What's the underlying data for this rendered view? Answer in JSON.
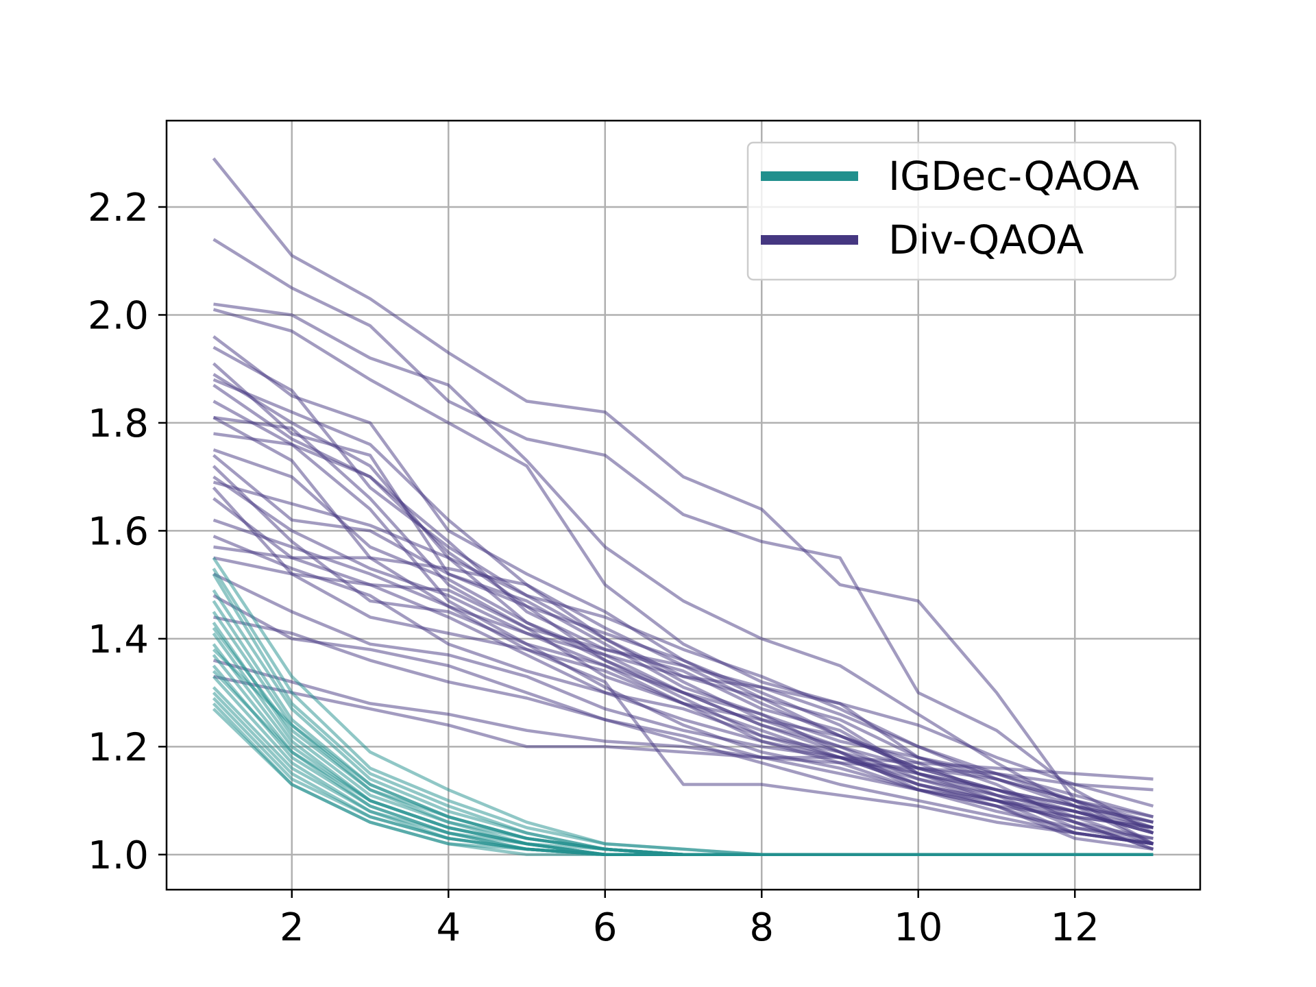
{
  "chart_data": {
    "type": "line",
    "title": "",
    "xlabel": "",
    "ylabel": "",
    "xlim": [
      0.4,
      13.6
    ],
    "ylim": [
      0.935,
      2.36
    ],
    "xticks": [
      2,
      4,
      6,
      8,
      10,
      12
    ],
    "yticks": [
      1.0,
      1.2,
      1.4,
      1.6,
      1.8,
      2.0,
      2.2
    ],
    "grid": true,
    "legend_position": "top-right",
    "legend": [
      {
        "label": "IGDec-QAOA",
        "color": "#21908d"
      },
      {
        "label": "Div-QAOA",
        "color": "#453781"
      }
    ],
    "x": [
      1,
      2,
      3,
      4,
      5,
      6,
      7,
      8,
      9,
      10,
      11,
      12,
      13
    ],
    "series": [
      {
        "name": "Div-QAOA",
        "color": "#453781",
        "values": [
          2.29,
          2.11,
          2.03,
          1.93,
          1.84,
          1.82,
          1.7,
          1.64,
          1.5,
          1.47,
          1.3,
          1.1,
          1.02
        ]
      },
      {
        "name": "Div-QAOA",
        "color": "#453781",
        "values": [
          2.14,
          2.05,
          1.98,
          1.84,
          1.77,
          1.74,
          1.63,
          1.58,
          1.55,
          1.3,
          1.23,
          1.12,
          1.04
        ]
      },
      {
        "name": "Div-QAOA",
        "color": "#453781",
        "values": [
          2.02,
          2.0,
          1.92,
          1.87,
          1.73,
          1.57,
          1.47,
          1.4,
          1.35,
          1.26,
          1.17,
          1.09,
          1.02
        ]
      },
      {
        "name": "Div-QAOA",
        "color": "#453781",
        "values": [
          2.01,
          1.97,
          1.88,
          1.8,
          1.72,
          1.5,
          1.39,
          1.32,
          1.28,
          1.18,
          1.13,
          1.06,
          1.01
        ]
      },
      {
        "name": "Div-QAOA",
        "color": "#453781",
        "values": [
          1.96,
          1.85,
          1.8,
          1.6,
          1.52,
          1.45,
          1.36,
          1.3,
          1.24,
          1.15,
          1.1,
          1.04,
          1.02
        ]
      },
      {
        "name": "Div-QAOA",
        "color": "#453781",
        "values": [
          1.94,
          1.86,
          1.68,
          1.57,
          1.48,
          1.4,
          1.33,
          1.29,
          1.22,
          1.17,
          1.11,
          1.05,
          1.03
        ]
      },
      {
        "name": "Div-QAOA",
        "color": "#453781",
        "values": [
          1.91,
          1.78,
          1.74,
          1.52,
          1.47,
          1.39,
          1.31,
          1.26,
          1.19,
          1.12,
          1.09,
          1.04,
          1.02
        ]
      },
      {
        "name": "Div-QAOA",
        "color": "#453781",
        "values": [
          1.89,
          1.8,
          1.72,
          1.55,
          1.43,
          1.37,
          1.3,
          1.24,
          1.2,
          1.14,
          1.1,
          1.06,
          1.01
        ]
      },
      {
        "name": "Div-QAOA",
        "color": "#453781",
        "values": [
          1.88,
          1.82,
          1.76,
          1.62,
          1.5,
          1.42,
          1.35,
          1.28,
          1.22,
          1.16,
          1.12,
          1.07,
          1.02
        ]
      },
      {
        "name": "Div-QAOA",
        "color": "#453781",
        "values": [
          1.87,
          1.77,
          1.7,
          1.56,
          1.46,
          1.36,
          1.29,
          1.22,
          1.18,
          1.13,
          1.09,
          1.03,
          1.01
        ]
      },
      {
        "name": "Div-QAOA",
        "color": "#453781",
        "values": [
          1.84,
          1.76,
          1.7,
          1.58,
          1.45,
          1.38,
          1.34,
          1.27,
          1.23,
          1.15,
          1.12,
          1.08,
          1.04
        ]
      },
      {
        "name": "Div-QAOA",
        "color": "#453781",
        "values": [
          1.81,
          1.79,
          1.66,
          1.5,
          1.42,
          1.33,
          1.28,
          1.21,
          1.17,
          1.12,
          1.08,
          1.05,
          1.02
        ]
      },
      {
        "name": "Div-QAOA",
        "color": "#453781",
        "values": [
          1.81,
          1.73,
          1.55,
          1.53,
          1.5,
          1.4,
          1.32,
          1.25,
          1.2,
          1.16,
          1.14,
          1.1,
          1.06
        ]
      },
      {
        "name": "Div-QAOA",
        "color": "#453781",
        "values": [
          1.78,
          1.76,
          1.64,
          1.47,
          1.39,
          1.35,
          1.3,
          1.26,
          1.21,
          1.18,
          1.15,
          1.11,
          1.07
        ]
      },
      {
        "name": "Div-QAOA",
        "color": "#453781",
        "values": [
          1.75,
          1.7,
          1.57,
          1.51,
          1.43,
          1.36,
          1.3,
          1.24,
          1.19,
          1.13,
          1.1,
          1.06,
          1.03
        ]
      },
      {
        "name": "Div-QAOA",
        "color": "#453781",
        "values": [
          1.74,
          1.62,
          1.6,
          1.52,
          1.46,
          1.41,
          1.36,
          1.29,
          1.25,
          1.18,
          1.14,
          1.09,
          1.05
        ]
      },
      {
        "name": "Div-QAOA",
        "color": "#453781",
        "values": [
          1.72,
          1.58,
          1.47,
          1.45,
          1.39,
          1.31,
          1.24,
          1.19,
          1.16,
          1.12,
          1.1,
          1.07,
          1.05
        ]
      },
      {
        "name": "Div-QAOA",
        "color": "#453781",
        "values": [
          1.7,
          1.6,
          1.53,
          1.48,
          1.41,
          1.35,
          1.28,
          1.23,
          1.18,
          1.13,
          1.1,
          1.08,
          1.04
        ]
      },
      {
        "name": "Div-QAOA",
        "color": "#453781",
        "values": [
          1.69,
          1.65,
          1.61,
          1.55,
          1.48,
          1.44,
          1.38,
          1.33,
          1.27,
          1.2,
          1.15,
          1.1,
          1.05
        ]
      },
      {
        "name": "Div-QAOA",
        "color": "#453781",
        "values": [
          1.68,
          1.52,
          1.44,
          1.41,
          1.38,
          1.34,
          1.28,
          1.25,
          1.22,
          1.16,
          1.12,
          1.09,
          1.06
        ]
      },
      {
        "name": "Div-QAOA",
        "color": "#453781",
        "values": [
          1.66,
          1.55,
          1.5,
          1.44,
          1.37,
          1.3,
          1.27,
          1.22,
          1.19,
          1.15,
          1.11,
          1.08,
          1.04
        ]
      },
      {
        "name": "Div-QAOA",
        "color": "#453781",
        "values": [
          1.59,
          1.53,
          1.48,
          1.39,
          1.34,
          1.3,
          1.25,
          1.21,
          1.18,
          1.14,
          1.11,
          1.08,
          1.05
        ]
      },
      {
        "name": "Div-QAOA",
        "color": "#453781",
        "values": [
          1.57,
          1.55,
          1.55,
          1.46,
          1.41,
          1.37,
          1.33,
          1.31,
          1.26,
          1.2,
          1.14,
          1.1,
          1.07
        ]
      },
      {
        "name": "Div-QAOA",
        "color": "#453781",
        "values": [
          1.55,
          1.52,
          1.5,
          1.49,
          1.42,
          1.38,
          1.35,
          1.31,
          1.28,
          1.24,
          1.18,
          1.13,
          1.09
        ]
      },
      {
        "name": "Div-QAOA",
        "color": "#453781",
        "values": [
          1.52,
          1.45,
          1.39,
          1.37,
          1.33,
          1.27,
          1.23,
          1.2,
          1.18,
          1.15,
          1.12,
          1.09,
          1.06
        ]
      },
      {
        "name": "Div-QAOA",
        "color": "#453781",
        "values": [
          1.48,
          1.4,
          1.38,
          1.35,
          1.3,
          1.25,
          1.22,
          1.18,
          1.15,
          1.12,
          1.09,
          1.07,
          1.05
        ]
      },
      {
        "name": "Div-QAOA",
        "color": "#453781",
        "values": [
          1.44,
          1.41,
          1.36,
          1.32,
          1.29,
          1.25,
          1.21,
          1.17,
          1.13,
          1.1,
          1.07,
          1.04,
          1.02
        ]
      },
      {
        "name": "Div-QAOA",
        "color": "#453781",
        "values": [
          1.36,
          1.32,
          1.28,
          1.26,
          1.23,
          1.21,
          1.2,
          1.18,
          1.17,
          1.16,
          1.15,
          1.13,
          1.12
        ]
      },
      {
        "name": "Div-QAOA",
        "color": "#453781",
        "values": [
          1.33,
          1.3,
          1.27,
          1.24,
          1.2,
          1.2,
          1.19,
          1.18,
          1.18,
          1.17,
          1.16,
          1.15,
          1.14
        ]
      },
      {
        "name": "Div-QAOA",
        "color": "#453781",
        "values": [
          1.62,
          1.57,
          1.52,
          1.46,
          1.38,
          1.32,
          1.13,
          1.13,
          1.11,
          1.09,
          1.06,
          1.04,
          1.02
        ]
      },
      {
        "name": "IGDec-QAOA",
        "color": "#21908d",
        "values": [
          1.55,
          1.33,
          1.19,
          1.12,
          1.06,
          1.02,
          1.01,
          1.0,
          1.0,
          1.0,
          1.0,
          1.0,
          1.0
        ]
      },
      {
        "name": "IGDec-QAOA",
        "color": "#21908d",
        "values": [
          1.53,
          1.3,
          1.16,
          1.1,
          1.05,
          1.02,
          1.01,
          1.0,
          1.0,
          1.0,
          1.0,
          1.0,
          1.0
        ]
      },
      {
        "name": "IGDec-QAOA",
        "color": "#21908d",
        "values": [
          1.52,
          1.28,
          1.15,
          1.09,
          1.04,
          1.01,
          1.0,
          1.0,
          1.0,
          1.0,
          1.0,
          1.0,
          1.0
        ]
      },
      {
        "name": "IGDec-QAOA",
        "color": "#21908d",
        "values": [
          1.49,
          1.27,
          1.14,
          1.08,
          1.04,
          1.01,
          1.0,
          1.0,
          1.0,
          1.0,
          1.0,
          1.0,
          1.0
        ]
      },
      {
        "name": "IGDec-QAOA",
        "color": "#21908d",
        "values": [
          1.47,
          1.25,
          1.13,
          1.07,
          1.03,
          1.01,
          1.0,
          1.0,
          1.0,
          1.0,
          1.0,
          1.0,
          1.0
        ]
      },
      {
        "name": "IGDec-QAOA",
        "color": "#21908d",
        "values": [
          1.45,
          1.24,
          1.12,
          1.07,
          1.03,
          1.01,
          1.0,
          1.0,
          1.0,
          1.0,
          1.0,
          1.0,
          1.0
        ]
      },
      {
        "name": "IGDec-QAOA",
        "color": "#21908d",
        "values": [
          1.43,
          1.22,
          1.11,
          1.06,
          1.03,
          1.01,
          1.0,
          1.0,
          1.0,
          1.0,
          1.0,
          1.0,
          1.0
        ]
      },
      {
        "name": "IGDec-QAOA",
        "color": "#21908d",
        "values": [
          1.41,
          1.21,
          1.1,
          1.05,
          1.02,
          1.0,
          1.0,
          1.0,
          1.0,
          1.0,
          1.0,
          1.0,
          1.0
        ]
      },
      {
        "name": "IGDec-QAOA",
        "color": "#21908d",
        "values": [
          1.39,
          1.2,
          1.1,
          1.05,
          1.02,
          1.0,
          1.0,
          1.0,
          1.0,
          1.0,
          1.0,
          1.0,
          1.0
        ]
      },
      {
        "name": "IGDec-QAOA",
        "color": "#21908d",
        "values": [
          1.37,
          1.19,
          1.09,
          1.04,
          1.02,
          1.0,
          1.0,
          1.0,
          1.0,
          1.0,
          1.0,
          1.0,
          1.0
        ]
      },
      {
        "name": "IGDec-QAOA",
        "color": "#21908d",
        "values": [
          1.35,
          1.18,
          1.09,
          1.04,
          1.01,
          1.0,
          1.0,
          1.0,
          1.0,
          1.0,
          1.0,
          1.0,
          1.0
        ]
      },
      {
        "name": "IGDec-QAOA",
        "color": "#21908d",
        "values": [
          1.33,
          1.17,
          1.08,
          1.04,
          1.01,
          1.0,
          1.0,
          1.0,
          1.0,
          1.0,
          1.0,
          1.0,
          1.0
        ]
      },
      {
        "name": "IGDec-QAOA",
        "color": "#21908d",
        "values": [
          1.31,
          1.16,
          1.08,
          1.03,
          1.01,
          1.0,
          1.0,
          1.0,
          1.0,
          1.0,
          1.0,
          1.0,
          1.0
        ]
      },
      {
        "name": "IGDec-QAOA",
        "color": "#21908d",
        "values": [
          1.3,
          1.15,
          1.07,
          1.03,
          1.01,
          1.0,
          1.0,
          1.0,
          1.0,
          1.0,
          1.0,
          1.0,
          1.0
        ]
      },
      {
        "name": "IGDec-QAOA",
        "color": "#21908d",
        "values": [
          1.29,
          1.14,
          1.07,
          1.03,
          1.01,
          1.0,
          1.0,
          1.0,
          1.0,
          1.0,
          1.0,
          1.0,
          1.0
        ]
      },
      {
        "name": "IGDec-QAOA",
        "color": "#21908d",
        "values": [
          1.28,
          1.13,
          1.06,
          1.02,
          1.01,
          1.0,
          1.0,
          1.0,
          1.0,
          1.0,
          1.0,
          1.0,
          1.0
        ]
      },
      {
        "name": "IGDec-QAOA",
        "color": "#21908d",
        "values": [
          1.27,
          1.13,
          1.06,
          1.02,
          1.0,
          1.0,
          1.0,
          1.0,
          1.0,
          1.0,
          1.0,
          1.0,
          1.0
        ]
      },
      {
        "name": "IGDec-QAOA",
        "color": "#21908d",
        "values": [
          1.42,
          1.23,
          1.12,
          1.06,
          1.02,
          1.01,
          1.0,
          1.0,
          1.0,
          1.0,
          1.0,
          1.0,
          1.0
        ]
      },
      {
        "name": "IGDec-QAOA",
        "color": "#21908d",
        "values": [
          1.34,
          1.19,
          1.1,
          1.05,
          1.02,
          1.0,
          1.0,
          1.0,
          1.0,
          1.0,
          1.0,
          1.0,
          1.0
        ]
      },
      {
        "name": "IGDec-QAOA",
        "color": "#21908d",
        "values": [
          1.38,
          1.24,
          1.13,
          1.07,
          1.03,
          1.01,
          1.0,
          1.0,
          1.0,
          1.0,
          1.0,
          1.0,
          1.0
        ]
      }
    ]
  }
}
